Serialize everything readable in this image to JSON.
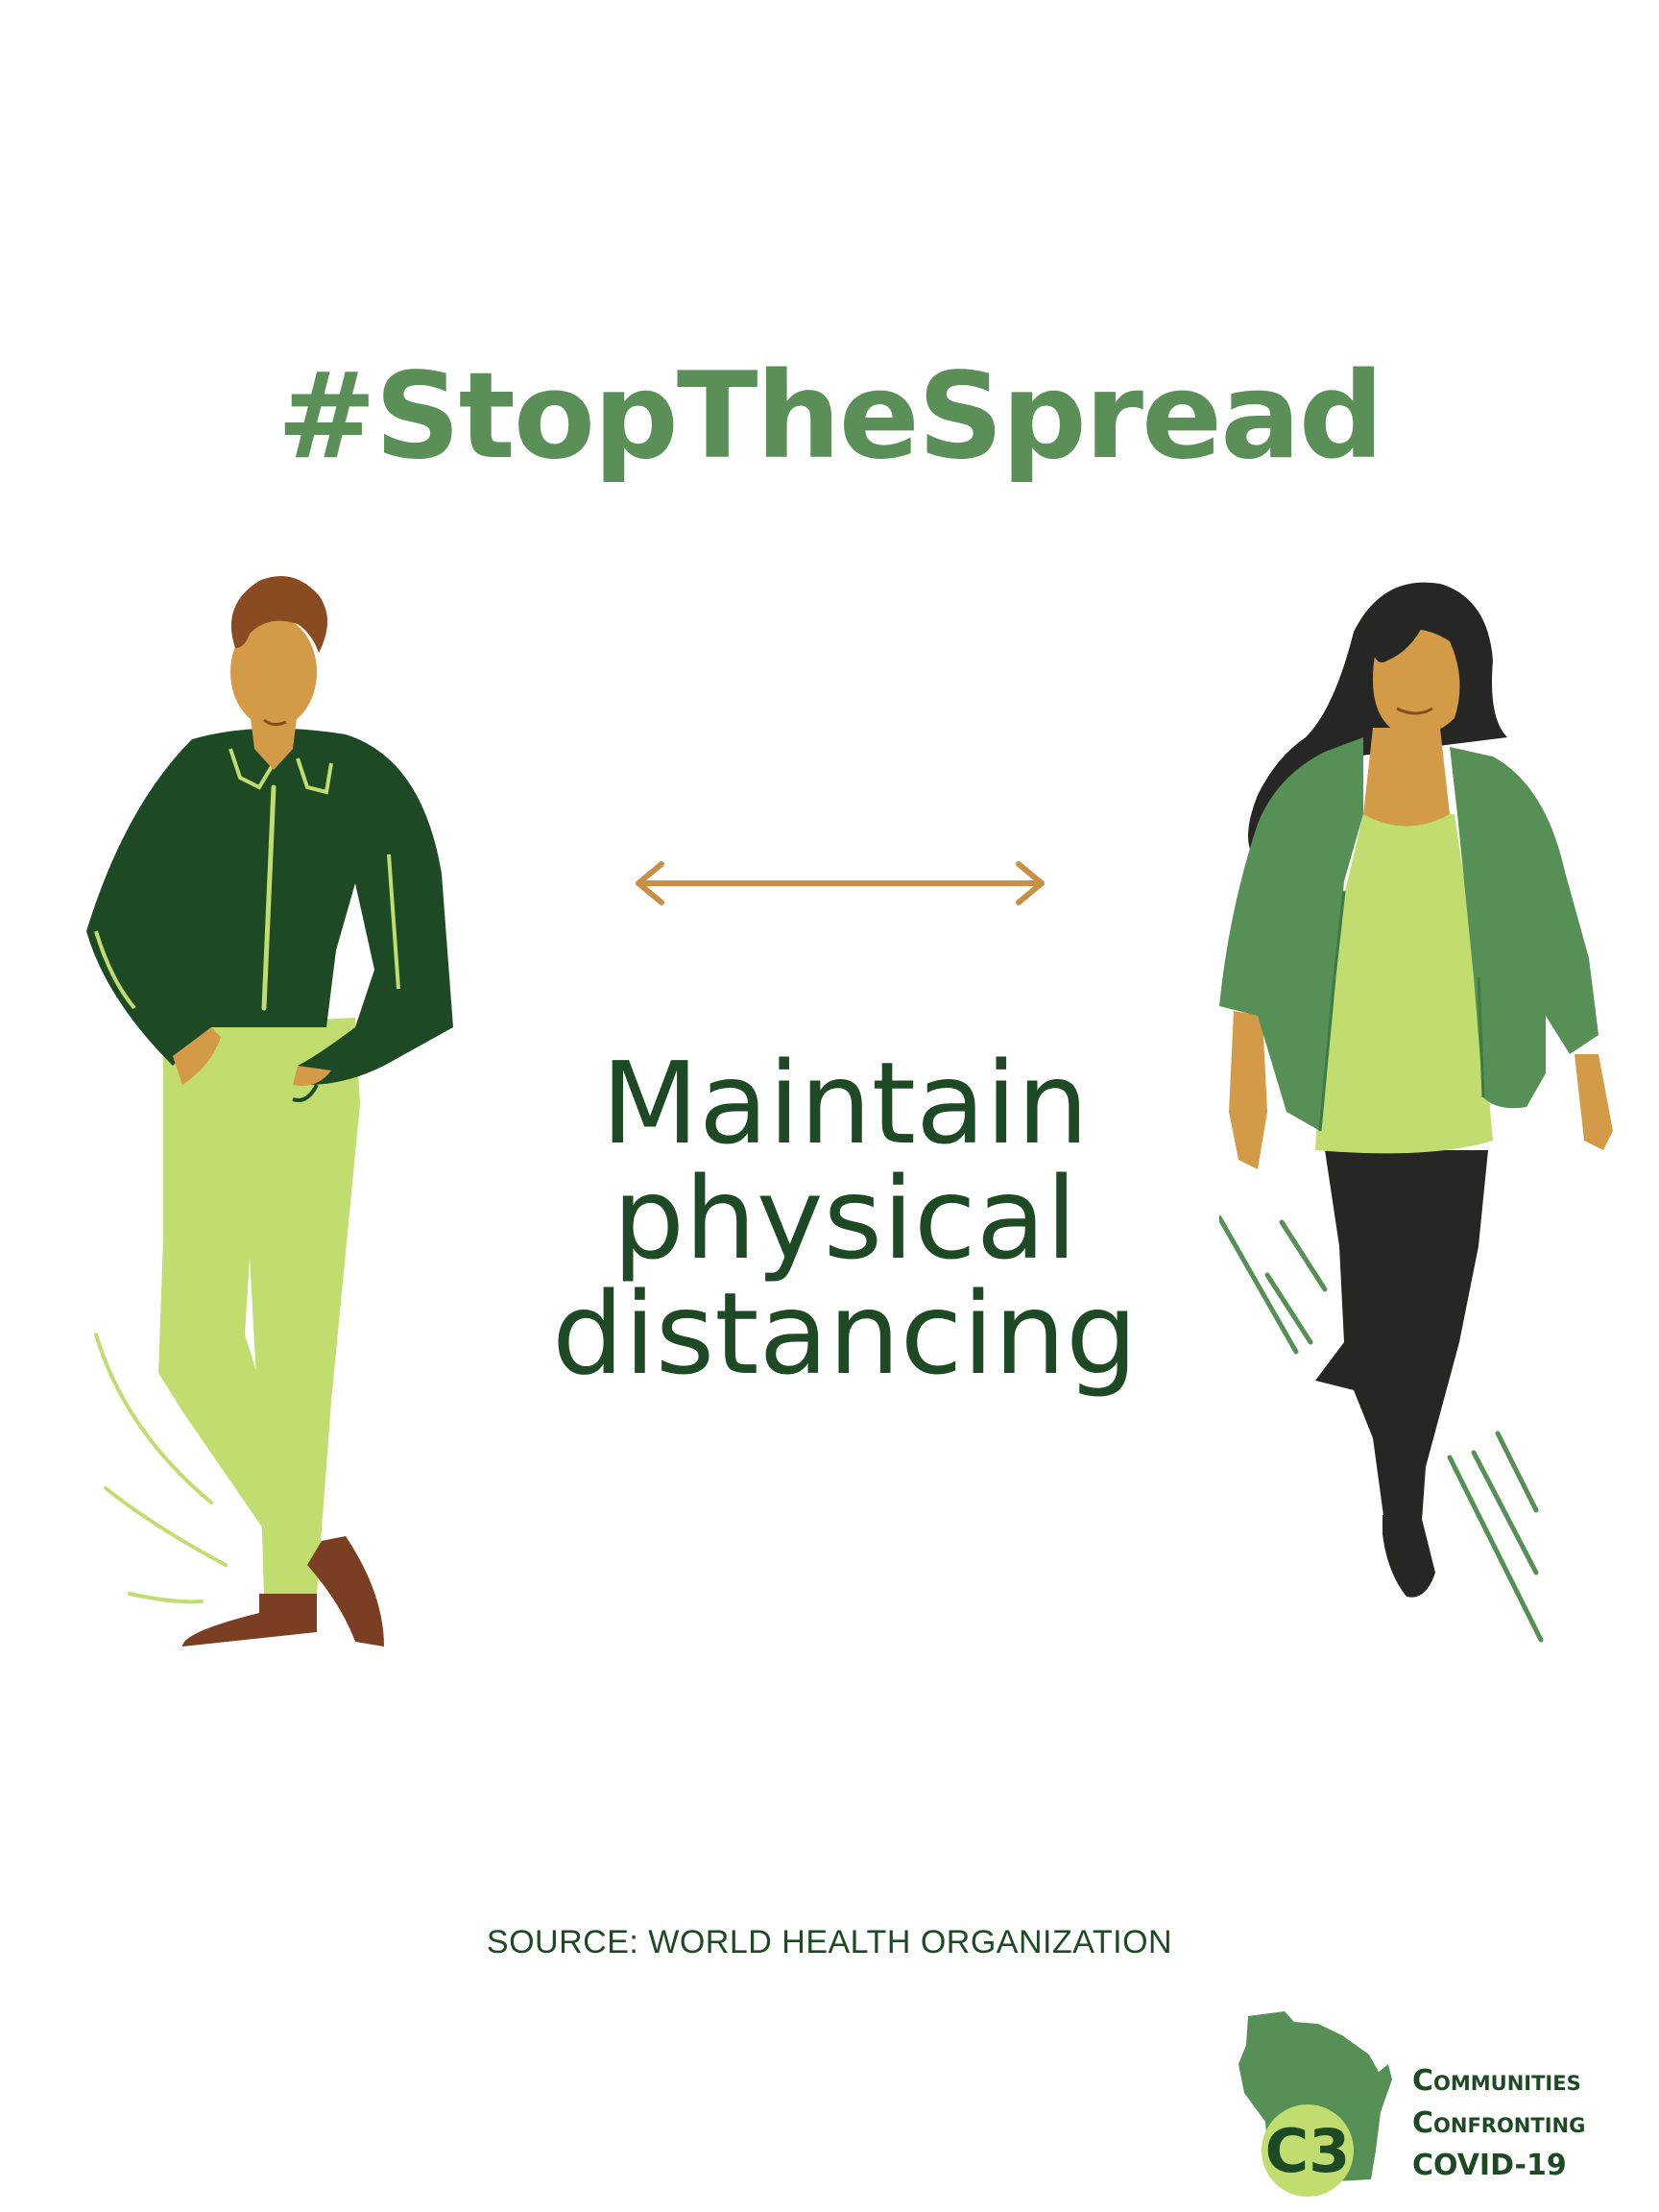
{
  "hashtag": "#StopTheSpread",
  "headline": {
    "line1": "Maintain",
    "line2": "physical",
    "line3": "distancing"
  },
  "source": "SOURCE: WORLD HEALTH ORGANIZATION",
  "logo": {
    "mark_text": "C3",
    "line1": "Communities",
    "line2": "Confronting",
    "line3": "COVID-19"
  },
  "colors": {
    "hashtag": "#5a8f58",
    "dark_green": "#1d4a24",
    "mid_green": "#569056",
    "light_green": "#c1dd70",
    "skin": "#d39a48",
    "hair_brown": "#8a4a22",
    "shoe_brown": "#7a3e22",
    "black": "#262624",
    "arrow": "#c98f45"
  }
}
